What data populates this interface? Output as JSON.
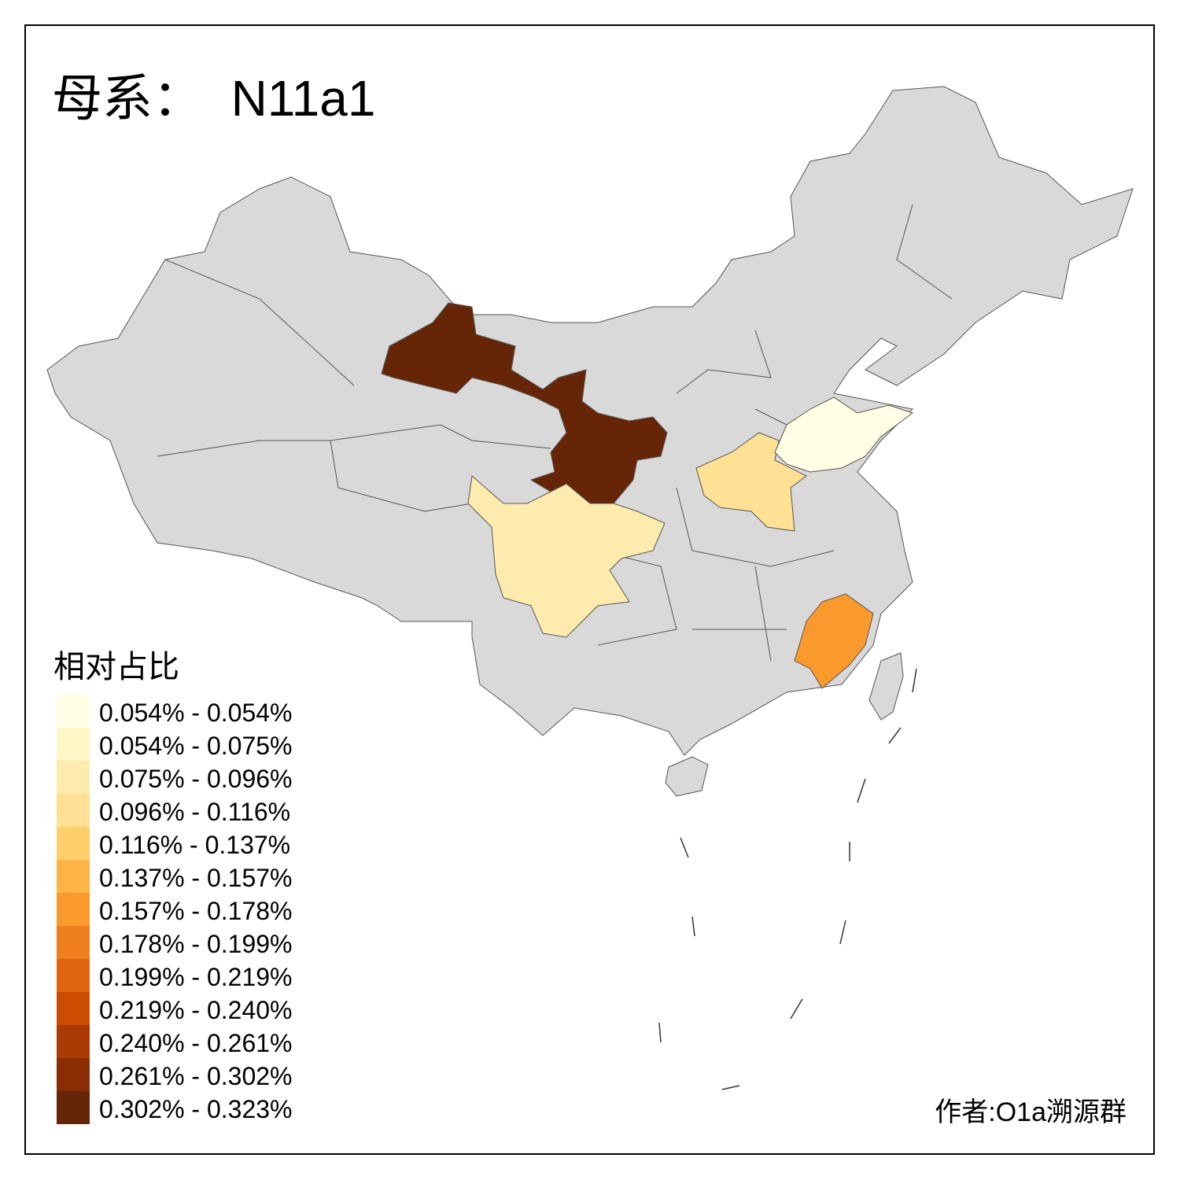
{
  "title": {
    "prefix": "母系：",
    "haplogroup": "N11a1"
  },
  "legend": {
    "title": "相对占比",
    "classes": [
      {
        "label": "0.054% - 0.054%",
        "color": "#FFFFE5"
      },
      {
        "label": "0.054% - 0.075%",
        "color": "#FFF7C6"
      },
      {
        "label": "0.075% - 0.096%",
        "color": "#FEEBAD"
      },
      {
        "label": "0.096% - 0.116%",
        "color": "#FEE195"
      },
      {
        "label": "0.116% - 0.137%",
        "color": "#FECE6A"
      },
      {
        "label": "0.137% - 0.157%",
        "color": "#FEB444"
      },
      {
        "label": "0.157% - 0.178%",
        "color": "#FB9A2C"
      },
      {
        "label": "0.178% - 0.199%",
        "color": "#F0801F"
      },
      {
        "label": "0.199% - 0.219%",
        "color": "#E06410"
      },
      {
        "label": "0.219% - 0.240%",
        "color": "#CC4C02"
      },
      {
        "label": "0.240% - 0.261%",
        "color": "#AC3A04"
      },
      {
        "label": "0.261% - 0.302%",
        "color": "#8A2D05"
      },
      {
        "label": "0.302% - 0.323%",
        "color": "#662506"
      }
    ]
  },
  "map": {
    "no_data_color": "#D9D9D9",
    "highlighted_regions": [
      {
        "legend_class": 12
      },
      {
        "legend_class": 2
      },
      {
        "legend_class": 3
      },
      {
        "legend_class": 0
      },
      {
        "legend_class": 6
      }
    ]
  },
  "credit": "作者:O1a溯源群"
}
